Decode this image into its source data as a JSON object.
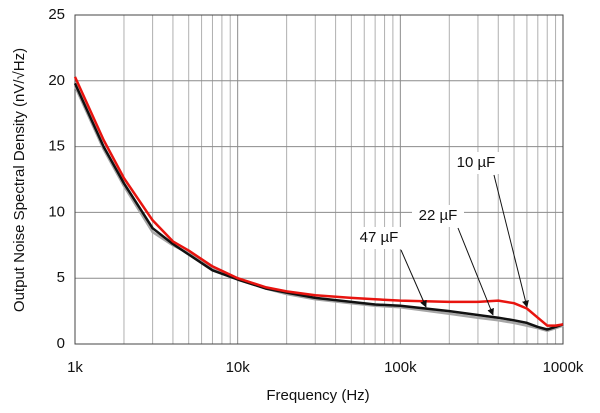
{
  "chart_data": {
    "type": "line",
    "xlabel": "Frequency (Hz)",
    "ylabel": "Output Noise Spectral Density (nV/√Hz)",
    "xscale": "log",
    "x": [
      1000,
      1500,
      2000,
      3000,
      4000,
      5000,
      7000,
      10000,
      15000,
      20000,
      30000,
      50000,
      70000,
      100000,
      200000,
      300000,
      400000,
      500000,
      600000,
      700000,
      800000,
      900000,
      1000000
    ],
    "series": [
      {
        "name": "10 µF",
        "color": "#e8140f",
        "values": [
          20.3,
          15.5,
          12.6,
          9.4,
          7.8,
          7.1,
          5.9,
          5.0,
          4.3,
          4.0,
          3.7,
          3.5,
          3.4,
          3.3,
          3.2,
          3.2,
          3.3,
          3.1,
          2.7,
          2.0,
          1.4,
          1.4,
          1.5
        ]
      },
      {
        "name": "22 µF",
        "color": "#111111",
        "values": [
          19.8,
          15.0,
          12.2,
          8.8,
          7.6,
          6.8,
          5.6,
          4.9,
          4.2,
          3.9,
          3.5,
          3.2,
          3.0,
          2.9,
          2.5,
          2.2,
          2.0,
          1.8,
          1.6,
          1.3,
          1.1,
          1.3,
          1.5
        ]
      },
      {
        "name": "47 µF",
        "color": "#a6a6a6",
        "values": [
          19.6,
          14.8,
          12.0,
          8.5,
          7.5,
          6.9,
          5.7,
          4.9,
          4.2,
          3.8,
          3.4,
          3.1,
          2.9,
          2.8,
          2.3,
          2.0,
          1.8,
          1.6,
          1.4,
          1.2,
          1.0,
          1.2,
          1.4
        ]
      }
    ],
    "xlim": [
      1000,
      1000000
    ],
    "xticks": [
      {
        "value": 1000,
        "label": "1k"
      },
      {
        "value": 10000,
        "label": "10k"
      },
      {
        "value": 100000,
        "label": "100k"
      },
      {
        "value": 1000000,
        "label": "1000k"
      }
    ],
    "ylim": [
      0,
      25
    ],
    "yticks": [
      0,
      5,
      10,
      15,
      20,
      25
    ],
    "grid": true
  }
}
